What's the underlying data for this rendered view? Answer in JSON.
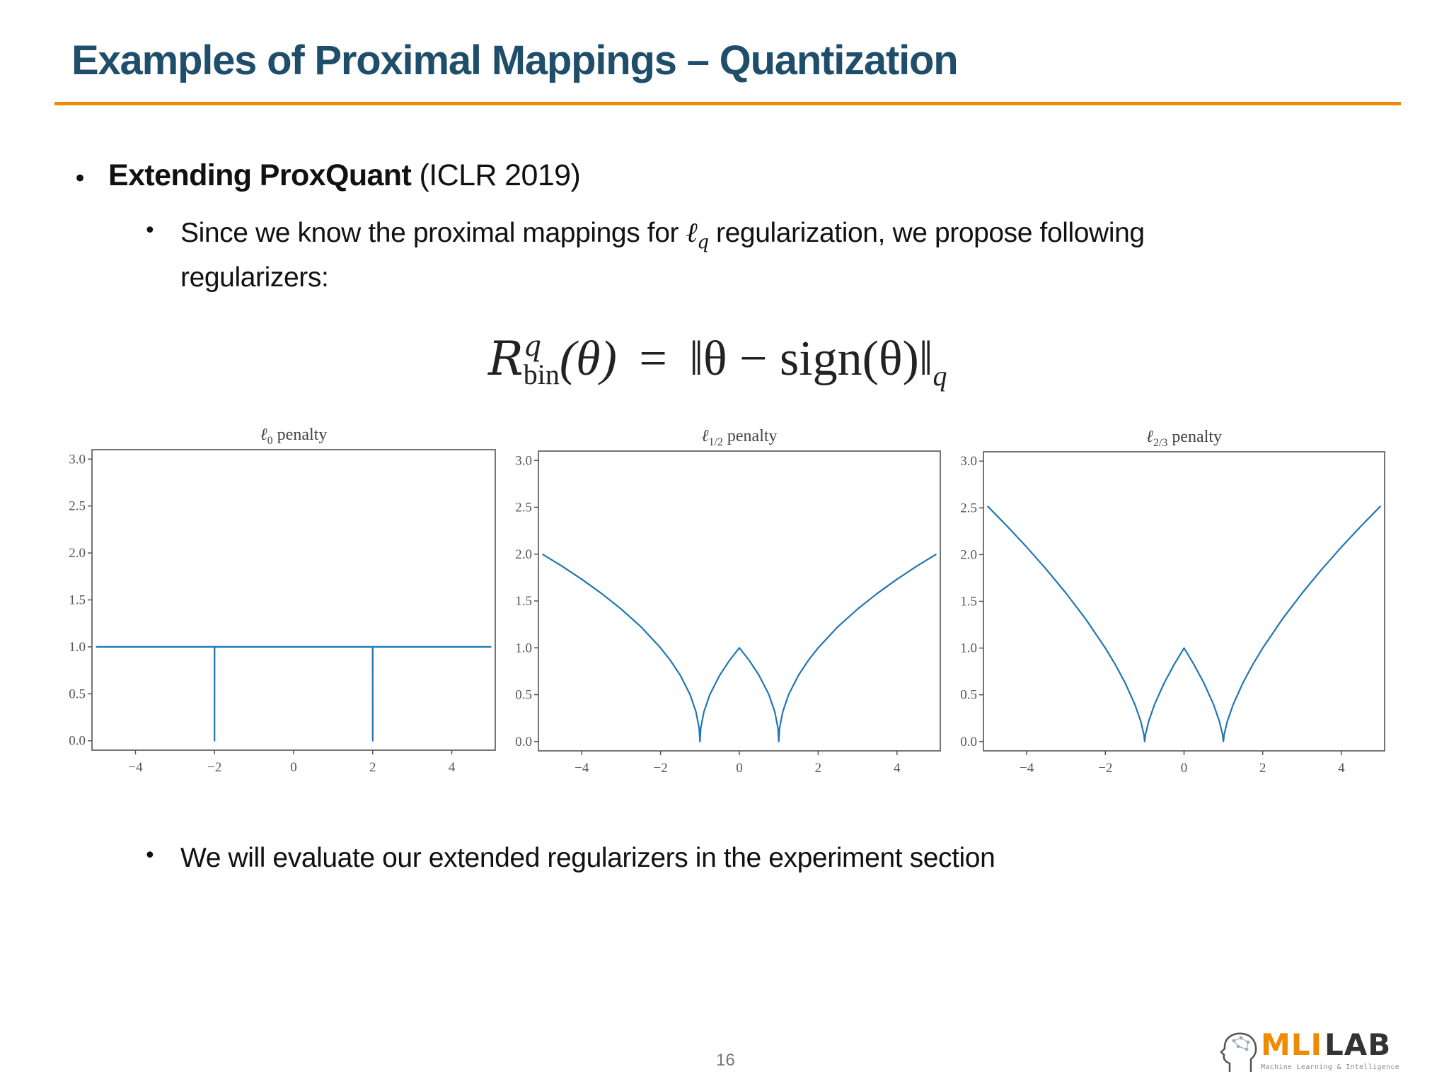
{
  "slide": {
    "title": "Examples of Proximal Mappings – Quantization",
    "page_number": "16",
    "accent_color": "#ee8a0a",
    "title_color": "#1f4e6b"
  },
  "bullets": {
    "level1": {
      "bold": "Extending ProxQuant",
      "rest": " (ICLR 2019)"
    },
    "sub1": {
      "line1_before": "Since we know the proximal mappings for ",
      "math_symbol": "ℓ",
      "math_subscript": "q",
      "line1_after": " regularization, we propose following",
      "line2": "regularizers:"
    },
    "sub2": "We will evaluate our extended regularizers in the experiment section"
  },
  "formula": {
    "lhs_symbol": "R",
    "lhs_sup": "q",
    "lhs_sub": "bin",
    "lhs_arg": "(θ)",
    "equals": "=",
    "rhs": "‖θ − sign(θ)‖",
    "rhs_sub": "q"
  },
  "logo": {
    "part1": "MLI",
    "part2": "LAB",
    "subtitle": "Machine Learning & Intelligence",
    "part1_color": "#f08a00",
    "part2_color": "#333333",
    "icon": "head-brain-icon"
  },
  "chart_data": [
    {
      "type": "line",
      "title": "ℓ0 penalty",
      "title_base": "ℓ",
      "title_sub": "0",
      "xlabel": "",
      "ylabel": "",
      "xlim": [
        -5.1,
        5.1
      ],
      "ylim": [
        -0.1,
        3.1
      ],
      "xticks": [
        -4,
        -2,
        0,
        2,
        4
      ],
      "xtick_labels": [
        "−4",
        "−2",
        "0",
        "2",
        "4"
      ],
      "yticks": [
        0.0,
        0.5,
        1.0,
        1.5,
        2.0,
        2.5,
        3.0
      ],
      "ytick_labels": [
        "0.0",
        "0.5",
        "1.0",
        "1.5",
        "2.0",
        "2.5",
        "3.0"
      ],
      "grid": false,
      "line_color": "#1f77b4",
      "x": [
        -5,
        -2.001,
        -2,
        -1.999,
        1.999,
        2,
        2.001,
        5
      ],
      "y": [
        1,
        1,
        0,
        1,
        1,
        0,
        1,
        1
      ]
    },
    {
      "type": "line",
      "title": "ℓ1/2 penalty",
      "title_base": "ℓ",
      "title_sub": "1/2",
      "xlabel": "",
      "ylabel": "",
      "xlim": [
        -5.1,
        5.1
      ],
      "ylim": [
        -0.1,
        3.1
      ],
      "xticks": [
        -4,
        -2,
        0,
        2,
        4
      ],
      "xtick_labels": [
        "−4",
        "−2",
        "0",
        "2",
        "4"
      ],
      "yticks": [
        0.0,
        0.5,
        1.0,
        1.5,
        2.0,
        2.5,
        3.0
      ],
      "ytick_labels": [
        "0.0",
        "0.5",
        "1.0",
        "1.5",
        "2.0",
        "2.5",
        "3.0"
      ],
      "grid": false,
      "line_color": "#1f77b4",
      "x": [
        -5,
        -4.5,
        -4,
        -3.5,
        -3,
        -2.5,
        -2,
        -1.75,
        -1.5,
        -1.25,
        -1.1,
        -1.02,
        -1,
        -0.98,
        -0.9,
        -0.75,
        -0.5,
        -0.25,
        0,
        0.25,
        0.5,
        0.75,
        0.9,
        0.98,
        1,
        1.02,
        1.1,
        1.25,
        1.5,
        1.75,
        2,
        2.5,
        3,
        3.5,
        4,
        4.5,
        5
      ],
      "y": [
        2.0,
        1.871,
        1.732,
        1.581,
        1.414,
        1.225,
        1.0,
        0.866,
        0.707,
        0.5,
        0.316,
        0.141,
        0,
        0.141,
        0.316,
        0.5,
        0.707,
        0.866,
        1.0,
        0.866,
        0.707,
        0.5,
        0.316,
        0.141,
        0,
        0.141,
        0.316,
        0.5,
        0.707,
        0.866,
        1.0,
        1.225,
        1.414,
        1.581,
        1.732,
        1.871,
        2.0
      ]
    },
    {
      "type": "line",
      "title": "ℓ2/3 penalty",
      "title_base": "ℓ",
      "title_sub": "2/3",
      "xlabel": "",
      "ylabel": "",
      "xlim": [
        -5.1,
        5.1
      ],
      "ylim": [
        -0.1,
        3.1
      ],
      "xticks": [
        -4,
        -2,
        0,
        2,
        4
      ],
      "xtick_labels": [
        "−4",
        "−2",
        "0",
        "2",
        "4"
      ],
      "yticks": [
        0.0,
        0.5,
        1.0,
        1.5,
        2.0,
        2.5,
        3.0
      ],
      "ytick_labels": [
        "0.0",
        "0.5",
        "1.0",
        "1.5",
        "2.0",
        "2.5",
        "3.0"
      ],
      "grid": false,
      "line_color": "#1f77b4",
      "x": [
        -5,
        -4.5,
        -4,
        -3.5,
        -3,
        -2.5,
        -2,
        -1.75,
        -1.5,
        -1.25,
        -1.1,
        -1.02,
        -1,
        -0.98,
        -0.9,
        -0.75,
        -0.5,
        -0.25,
        0,
        0.25,
        0.5,
        0.75,
        0.9,
        0.98,
        1,
        1.02,
        1.1,
        1.25,
        1.5,
        1.75,
        2,
        2.5,
        3,
        3.5,
        4,
        4.5,
        5
      ],
      "y": [
        2.52,
        2.305,
        2.08,
        1.842,
        1.587,
        1.31,
        1.0,
        0.825,
        0.63,
        0.397,
        0.215,
        0.074,
        0,
        0.074,
        0.215,
        0.397,
        0.63,
        0.825,
        1.0,
        0.825,
        0.63,
        0.397,
        0.215,
        0.074,
        0,
        0.074,
        0.215,
        0.397,
        0.63,
        0.825,
        1.0,
        1.31,
        1.587,
        1.842,
        2.08,
        2.305,
        2.52
      ]
    }
  ]
}
